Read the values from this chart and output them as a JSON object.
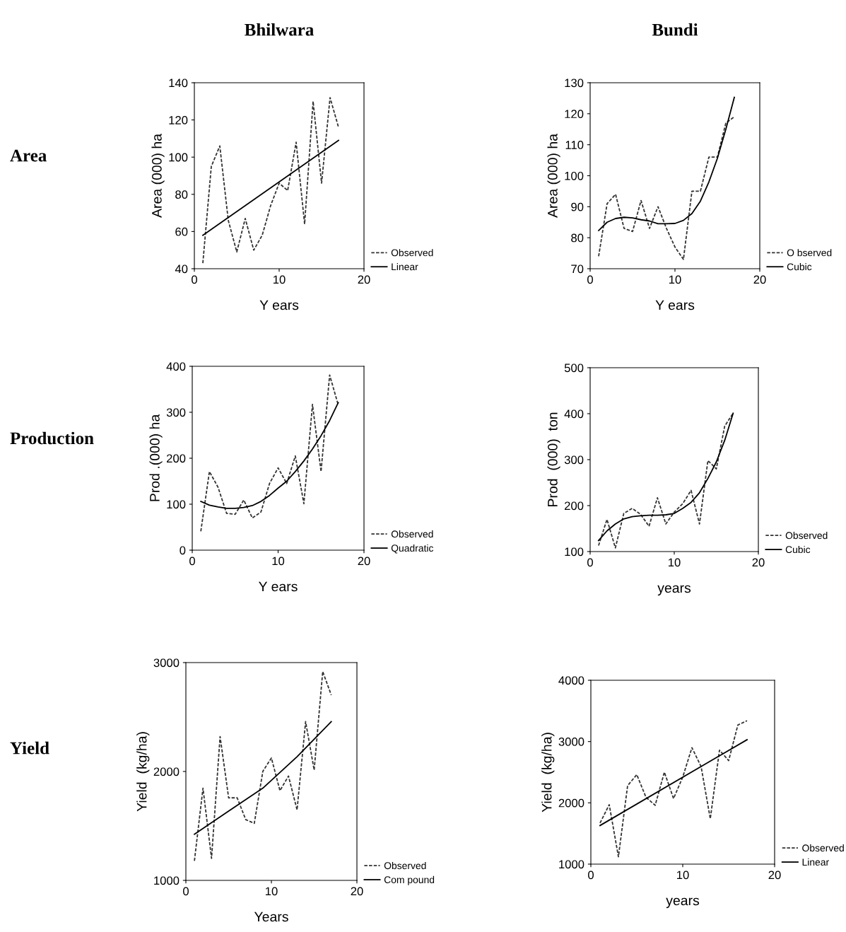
{
  "chart_data": [
    {
      "type": "line",
      "title": "Bhilwara",
      "annotations": [
        "Area"
      ],
      "xlabel": "Y ears",
      "ylabel": "Area (000) ha",
      "xlim": [
        0,
        20
      ],
      "xticks": [
        0,
        10,
        20
      ],
      "ylim": [
        40,
        140
      ],
      "yticks": [
        40,
        60,
        80,
        100,
        120,
        140
      ],
      "legend": "bottom right",
      "x": [
        1,
        2,
        3,
        4,
        5,
        6,
        7,
        8,
        9,
        10,
        11,
        12,
        13,
        14,
        15,
        16,
        17
      ],
      "series": [
        {
          "name": "Observed",
          "color": "#333333",
          "line_style": "dashed",
          "values": [
            43,
            95,
            106,
            66,
            49,
            67,
            50,
            58,
            74,
            86,
            82,
            108,
            64,
            130,
            86,
            132,
            116
          ]
        },
        {
          "name": "Linear",
          "color": "#000000",
          "line_style": "solid",
          "x": [
            1,
            17
          ],
          "values": [
            58,
            109
          ]
        }
      ]
    },
    {
      "type": "line",
      "title": "Bundi",
      "xlabel": "Y ears",
      "ylabel": "Area (000) ha",
      "xlim": [
        0,
        20
      ],
      "xticks": [
        0,
        10,
        20
      ],
      "ylim": [
        70,
        130
      ],
      "yticks": [
        70,
        80,
        90,
        100,
        110,
        120,
        130
      ],
      "legend": "bottom right",
      "x": [
        1,
        2,
        3,
        4,
        5,
        6,
        7,
        8,
        9,
        10,
        11,
        12,
        13,
        14,
        15,
        16,
        17
      ],
      "series": [
        {
          "name": "O bserved",
          "color": "#333333",
          "line_style": "dashed",
          "values": [
            74,
            91,
            94,
            83,
            82,
            92,
            83,
            90,
            83,
            77,
            73,
            95,
            95,
            106,
            106,
            117,
            119
          ]
        },
        {
          "name": "Cubic",
          "color": "#000000",
          "line_style": "solid",
          "values": [
            82.3,
            85,
            86.2,
            86.6,
            86.4,
            85.8,
            85.4,
            84.5,
            84.5,
            84.6,
            85.6,
            87.8,
            91.8,
            98,
            105.6,
            115,
            125.3
          ]
        }
      ]
    },
    {
      "type": "line",
      "annotations": [
        "Production"
      ],
      "xlabel": "Y ears",
      "ylabel": "Prod .(000) ha",
      "xlim": [
        0,
        20
      ],
      "xticks": [
        0,
        10,
        20
      ],
      "ylim": [
        0,
        400
      ],
      "yticks": [
        0,
        100,
        200,
        300,
        400
      ],
      "legend": "bottom right",
      "x": [
        1,
        2,
        3,
        4,
        5,
        6,
        7,
        8,
        9,
        10,
        11,
        12,
        13,
        14,
        15,
        16,
        17
      ],
      "series": [
        {
          "name": "Observed",
          "color": "#333333",
          "line_style": "dashed",
          "values": [
            41,
            171,
            137,
            80,
            78,
            109,
            70,
            83,
            145,
            179,
            145,
            205,
            101,
            317,
            171,
            381,
            316
          ]
        },
        {
          "name": "Quadratic",
          "color": "#000000",
          "line_style": "solid",
          "values": [
            106,
            98,
            94,
            91,
            91,
            93,
            97,
            106,
            119,
            135,
            150,
            171,
            194,
            220,
            249,
            282,
            321
          ]
        }
      ]
    },
    {
      "type": "line",
      "xlabel": "years",
      "ylabel": "Prod  (000)  ton",
      "xlim": [
        0,
        20
      ],
      "xticks": [
        0,
        10,
        20
      ],
      "ylim": [
        100,
        500
      ],
      "yticks": [
        100,
        200,
        300,
        400,
        500
      ],
      "legend": "bottom right",
      "x": [
        1,
        2,
        3,
        4,
        5,
        6,
        7,
        8,
        9,
        10,
        11,
        12,
        13,
        14,
        15,
        16,
        17
      ],
      "series": [
        {
          "name": "Observed",
          "color": "#333333",
          "line_style": "dashed",
          "values": [
            113,
            170,
            108,
            183,
            194,
            181,
            155,
            217,
            160,
            186,
            204,
            233,
            160,
            298,
            280,
            373,
            401
          ]
        },
        {
          "name": "Cubic",
          "color": "#000000",
          "line_style": "solid",
          "values": [
            124,
            145,
            160,
            171,
            176,
            178,
            179,
            179,
            180,
            183,
            194,
            207,
            228,
            259,
            295,
            342,
            401
          ]
        }
      ]
    },
    {
      "type": "line",
      "annotations": [
        "Yield"
      ],
      "xlabel": "Years",
      "ylabel": "Yield  (kg/ha)",
      "xlim": [
        0,
        20
      ],
      "xticks": [
        0,
        10,
        20
      ],
      "ylim": [
        1000,
        3000
      ],
      "yticks": [
        1000,
        2000,
        3000
      ],
      "legend": "bottom right",
      "x": [
        1,
        2,
        3,
        4,
        5,
        6,
        7,
        8,
        9,
        10,
        11,
        12,
        13,
        14,
        15,
        16,
        17
      ],
      "series": [
        {
          "name": "Observed",
          "color": "#333333",
          "line_style": "dashed",
          "values": [
            1180,
            1847,
            1202,
            2320,
            1758,
            1758,
            1558,
            1524,
            2002,
            2124,
            1824,
            1958,
            1647,
            2458,
            2013,
            2918,
            2702
          ]
        },
        {
          "name": "Com pound",
          "color": "#000000",
          "line_style": "solid",
          "x": [
            1,
            5,
            9,
            13,
            17
          ],
          "values": [
            1424,
            1636,
            1847,
            2136,
            2458
          ]
        }
      ]
    },
    {
      "type": "line",
      "xlabel": "years",
      "ylabel": "Yield  (kg/ha)",
      "xlim": [
        0,
        20
      ],
      "xticks": [
        0,
        10,
        20
      ],
      "ylim": [
        1000,
        4000
      ],
      "yticks": [
        1000,
        2000,
        3000,
        4000
      ],
      "legend": "bottom right",
      "x": [
        1,
        2,
        3,
        4,
        5,
        6,
        7,
        8,
        9,
        10,
        11,
        12,
        13,
        14,
        15,
        16,
        17
      ],
      "series": [
        {
          "name": "Observed",
          "color": "#333333",
          "line_style": "dashed",
          "values": [
            1670,
            1970,
            1120,
            2280,
            2460,
            2090,
            1960,
            2500,
            2070,
            2420,
            2900,
            2590,
            1740,
            2860,
            2690,
            3270,
            3340
          ]
        },
        {
          "name": "Linear",
          "color": "#000000",
          "line_style": "solid",
          "x": [
            1,
            17
          ],
          "values": [
            1630,
            3030
          ]
        }
      ]
    }
  ]
}
